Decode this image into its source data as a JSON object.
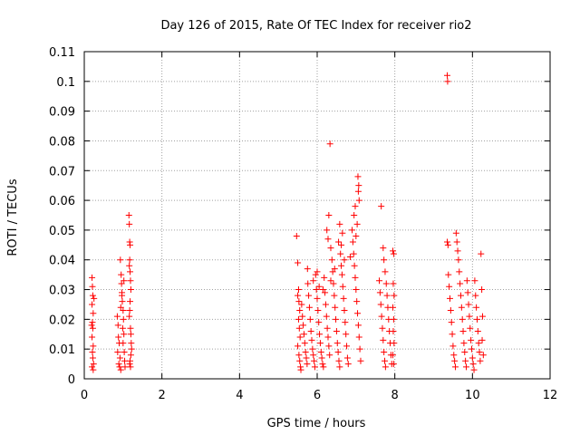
{
  "chart_data": {
    "type": "scatter",
    "title": "Day 126 of 2015, Rate Of TEC Index for receiver rio2",
    "xlabel": "GPS time / hours",
    "ylabel": "ROTI / TECUs",
    "xlim": [
      0,
      12
    ],
    "ylim": [
      0,
      0.11
    ],
    "xticks": [
      0,
      2,
      4,
      6,
      8,
      10,
      12
    ],
    "xtick_labels": [
      "0",
      "2",
      "4",
      "6",
      "8",
      "10",
      "12"
    ],
    "yticks": [
      0,
      0.01,
      0.02,
      0.03,
      0.04,
      0.05,
      0.06,
      0.07,
      0.08,
      0.09,
      0.1,
      0.11
    ],
    "ytick_labels": [
      "0",
      "0.01",
      "0.02",
      "0.03",
      "0.04",
      "0.05",
      "0.06",
      "0.07",
      "0.08",
      "0.09",
      "0.1",
      "0.11"
    ],
    "grid": true,
    "marker": "+",
    "color": "#ff0000",
    "series": [
      {
        "name": "rio2",
        "points": [
          [
            0.2,
            0.034
          ],
          [
            0.21,
            0.031
          ],
          [
            0.22,
            0.028
          ],
          [
            0.2,
            0.025
          ],
          [
            0.23,
            0.022
          ],
          [
            0.21,
            0.019
          ],
          [
            0.22,
            0.017
          ],
          [
            0.2,
            0.014
          ],
          [
            0.23,
            0.011
          ],
          [
            0.21,
            0.009
          ],
          [
            0.22,
            0.007
          ],
          [
            0.24,
            0.005
          ],
          [
            0.2,
            0.004
          ],
          [
            0.23,
            0.003
          ],
          [
            0.25,
            0.027
          ],
          [
            0.19,
            0.018
          ],
          [
            0.85,
            0.021
          ],
          [
            0.87,
            0.018
          ],
          [
            0.88,
            0.014
          ],
          [
            0.9,
            0.012
          ],
          [
            0.86,
            0.009
          ],
          [
            0.92,
            0.007
          ],
          [
            0.89,
            0.005
          ],
          [
            0.91,
            0.004
          ],
          [
            0.94,
            0.003
          ],
          [
            0.93,
            0.04
          ],
          [
            0.95,
            0.035
          ],
          [
            0.96,
            0.032
          ],
          [
            0.97,
            0.029
          ],
          [
            0.98,
            0.026
          ],
          [
            1.0,
            0.023
          ],
          [
            1.01,
            0.02
          ],
          [
            0.99,
            0.017
          ],
          [
            1.02,
            0.015
          ],
          [
            1.0,
            0.012
          ],
          [
            1.03,
            0.009
          ],
          [
            1.04,
            0.006
          ],
          [
            1.05,
            0.004
          ],
          [
            0.97,
            0.028
          ],
          [
            0.94,
            0.024
          ],
          [
            1.02,
            0.033
          ],
          [
            1.15,
            0.055
          ],
          [
            1.16,
            0.052
          ],
          [
            1.17,
            0.046
          ],
          [
            1.18,
            0.045
          ],
          [
            1.17,
            0.04
          ],
          [
            1.16,
            0.038
          ],
          [
            1.18,
            0.036
          ],
          [
            1.19,
            0.033
          ],
          [
            1.2,
            0.03
          ],
          [
            1.18,
            0.026
          ],
          [
            1.17,
            0.023
          ],
          [
            1.16,
            0.021
          ],
          [
            1.19,
            0.017
          ],
          [
            1.2,
            0.015
          ],
          [
            1.21,
            0.012
          ],
          [
            1.22,
            0.01
          ],
          [
            1.2,
            0.008
          ],
          [
            1.18,
            0.006
          ],
          [
            1.17,
            0.005
          ],
          [
            1.19,
            0.004
          ],
          [
            5.47,
            0.048
          ],
          [
            5.5,
            0.039
          ],
          [
            5.52,
            0.03
          ],
          [
            5.5,
            0.028
          ],
          [
            5.53,
            0.026
          ],
          [
            5.55,
            0.023
          ],
          [
            5.52,
            0.02
          ],
          [
            5.54,
            0.017
          ],
          [
            5.56,
            0.014
          ],
          [
            5.5,
            0.011
          ],
          [
            5.53,
            0.008
          ],
          [
            5.55,
            0.006
          ],
          [
            5.57,
            0.004
          ],
          [
            5.58,
            0.003
          ],
          [
            5.6,
            0.025
          ],
          [
            5.62,
            0.021
          ],
          [
            5.64,
            0.018
          ],
          [
            5.66,
            0.015
          ],
          [
            5.68,
            0.012
          ],
          [
            5.7,
            0.009
          ],
          [
            5.72,
            0.007
          ],
          [
            5.74,
            0.005
          ],
          [
            5.76,
            0.032
          ],
          [
            5.78,
            0.028
          ],
          [
            5.8,
            0.024
          ],
          [
            5.82,
            0.02
          ],
          [
            5.84,
            0.016
          ],
          [
            5.86,
            0.013
          ],
          [
            5.88,
            0.01
          ],
          [
            5.9,
            0.008
          ],
          [
            5.92,
            0.006
          ],
          [
            5.94,
            0.004
          ],
          [
            5.96,
            0.035
          ],
          [
            5.98,
            0.03
          ],
          [
            6.0,
            0.027
          ],
          [
            6.02,
            0.023
          ],
          [
            6.04,
            0.019
          ],
          [
            6.06,
            0.015
          ],
          [
            6.08,
            0.012
          ],
          [
            6.1,
            0.009
          ],
          [
            6.12,
            0.007
          ],
          [
            6.14,
            0.005
          ],
          [
            6.16,
            0.004
          ],
          [
            6.18,
            0.034
          ],
          [
            6.2,
            0.029
          ],
          [
            6.22,
            0.025
          ],
          [
            6.24,
            0.021
          ],
          [
            6.26,
            0.017
          ],
          [
            6.28,
            0.014
          ],
          [
            6.3,
            0.011
          ],
          [
            6.32,
            0.008
          ],
          [
            6.25,
            0.05
          ],
          [
            6.28,
            0.047
          ],
          [
            6.3,
            0.055
          ],
          [
            6.33,
            0.079
          ],
          [
            6.35,
            0.044
          ],
          [
            6.38,
            0.04
          ],
          [
            6.4,
            0.036
          ],
          [
            6.42,
            0.032
          ],
          [
            6.44,
            0.028
          ],
          [
            6.46,
            0.024
          ],
          [
            6.48,
            0.02
          ],
          [
            6.5,
            0.016
          ],
          [
            6.52,
            0.012
          ],
          [
            6.54,
            0.009
          ],
          [
            6.56,
            0.006
          ],
          [
            6.58,
            0.004
          ],
          [
            6.6,
            0.042
          ],
          [
            6.62,
            0.038
          ],
          [
            6.64,
            0.035
          ],
          [
            6.66,
            0.031
          ],
          [
            6.68,
            0.027
          ],
          [
            6.7,
            0.023
          ],
          [
            6.72,
            0.019
          ],
          [
            6.74,
            0.015
          ],
          [
            6.76,
            0.011
          ],
          [
            6.78,
            0.007
          ],
          [
            6.8,
            0.005
          ],
          [
            6.55,
            0.046
          ],
          [
            6.58,
            0.052
          ],
          [
            6.62,
            0.045
          ],
          [
            6.65,
            0.049
          ],
          [
            6.9,
            0.05
          ],
          [
            6.92,
            0.046
          ],
          [
            6.94,
            0.042
          ],
          [
            6.96,
            0.038
          ],
          [
            6.98,
            0.034
          ],
          [
            7.0,
            0.03
          ],
          [
            7.02,
            0.026
          ],
          [
            7.04,
            0.022
          ],
          [
            7.06,
            0.018
          ],
          [
            7.08,
            0.014
          ],
          [
            7.1,
            0.01
          ],
          [
            7.12,
            0.006
          ],
          [
            7.05,
            0.068
          ],
          [
            7.07,
            0.065
          ],
          [
            7.06,
            0.063
          ],
          [
            7.08,
            0.06
          ],
          [
            7.03,
            0.052
          ],
          [
            7.0,
            0.048
          ],
          [
            6.95,
            0.055
          ],
          [
            6.98,
            0.058
          ],
          [
            5.9,
            0.033
          ],
          [
            6.05,
            0.031
          ],
          [
            6.15,
            0.03
          ],
          [
            6.35,
            0.033
          ],
          [
            6.45,
            0.037
          ],
          [
            6.7,
            0.04
          ],
          [
            6.85,
            0.041
          ],
          [
            5.75,
            0.037
          ],
          [
            6.0,
            0.036
          ],
          [
            7.6,
            0.033
          ],
          [
            7.62,
            0.029
          ],
          [
            7.64,
            0.025
          ],
          [
            7.66,
            0.021
          ],
          [
            7.68,
            0.017
          ],
          [
            7.7,
            0.013
          ],
          [
            7.72,
            0.009
          ],
          [
            7.74,
            0.006
          ],
          [
            7.76,
            0.004
          ],
          [
            7.65,
            0.058
          ],
          [
            7.7,
            0.044
          ],
          [
            7.72,
            0.04
          ],
          [
            7.75,
            0.036
          ],
          [
            7.78,
            0.032
          ],
          [
            7.8,
            0.028
          ],
          [
            7.82,
            0.024
          ],
          [
            7.84,
            0.02
          ],
          [
            7.86,
            0.016
          ],
          [
            7.88,
            0.012
          ],
          [
            7.9,
            0.008
          ],
          [
            7.92,
            0.005
          ],
          [
            7.95,
            0.043
          ],
          [
            7.97,
            0.042
          ],
          [
            7.96,
            0.032
          ],
          [
            7.98,
            0.028
          ],
          [
            7.95,
            0.024
          ],
          [
            7.97,
            0.02
          ],
          [
            7.96,
            0.016
          ],
          [
            7.98,
            0.012
          ],
          [
            7.95,
            0.008
          ],
          [
            7.97,
            0.005
          ],
          [
            9.35,
            0.102
          ],
          [
            9.36,
            0.1
          ],
          [
            9.35,
            0.046
          ],
          [
            9.37,
            0.045
          ],
          [
            9.38,
            0.035
          ],
          [
            9.4,
            0.031
          ],
          [
            9.42,
            0.027
          ],
          [
            9.44,
            0.023
          ],
          [
            9.46,
            0.019
          ],
          [
            9.48,
            0.015
          ],
          [
            9.5,
            0.011
          ],
          [
            9.52,
            0.008
          ],
          [
            9.54,
            0.006
          ],
          [
            9.56,
            0.004
          ],
          [
            9.58,
            0.049
          ],
          [
            9.6,
            0.046
          ],
          [
            9.62,
            0.043
          ],
          [
            9.64,
            0.04
          ],
          [
            9.66,
            0.036
          ],
          [
            9.68,
            0.032
          ],
          [
            9.7,
            0.028
          ],
          [
            9.72,
            0.024
          ],
          [
            9.74,
            0.02
          ],
          [
            9.76,
            0.016
          ],
          [
            9.78,
            0.012
          ],
          [
            9.8,
            0.009
          ],
          [
            9.82,
            0.006
          ],
          [
            9.84,
            0.004
          ],
          [
            9.86,
            0.033
          ],
          [
            9.88,
            0.029
          ],
          [
            9.9,
            0.025
          ],
          [
            9.92,
            0.021
          ],
          [
            9.94,
            0.017
          ],
          [
            9.96,
            0.013
          ],
          [
            9.98,
            0.01
          ],
          [
            10.0,
            0.007
          ],
          [
            10.02,
            0.005
          ],
          [
            10.04,
            0.003
          ],
          [
            10.06,
            0.033
          ],
          [
            10.08,
            0.028
          ],
          [
            10.1,
            0.024
          ],
          [
            10.12,
            0.02
          ],
          [
            10.14,
            0.016
          ],
          [
            10.16,
            0.012
          ],
          [
            10.18,
            0.009
          ],
          [
            10.2,
            0.006
          ],
          [
            10.22,
            0.042
          ],
          [
            10.24,
            0.03
          ],
          [
            10.26,
            0.021
          ],
          [
            10.25,
            0.013
          ],
          [
            10.28,
            0.008
          ]
        ]
      }
    ]
  }
}
